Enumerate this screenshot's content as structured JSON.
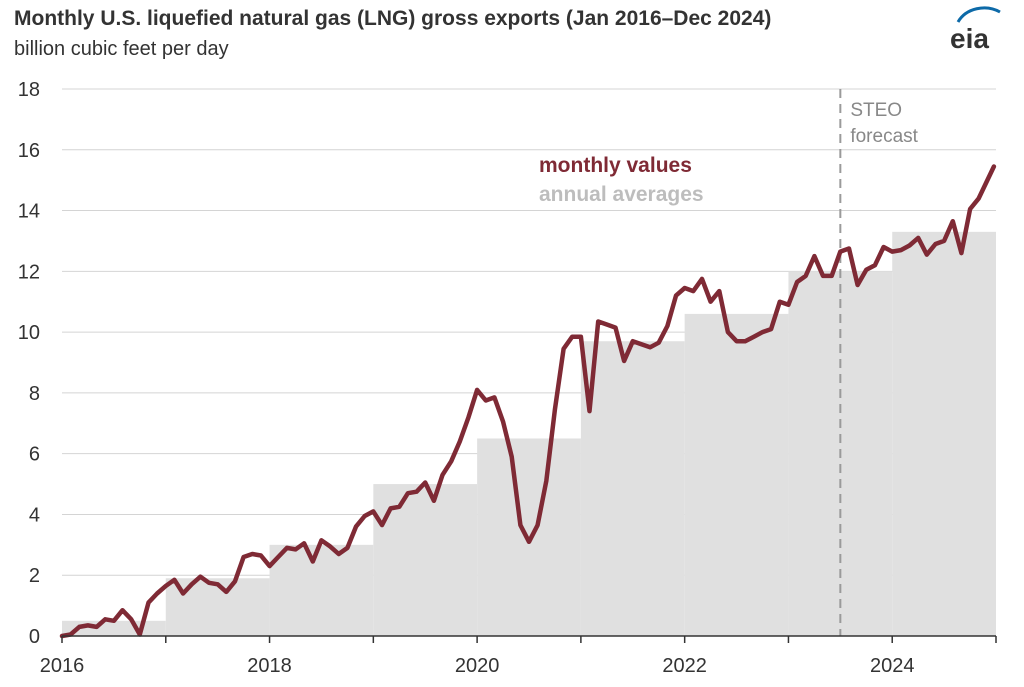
{
  "chart_data": {
    "type": "line",
    "title": "Monthly U.S. liquefied natural gas (LNG) gross exports (Jan 2016–Dec 2024)",
    "subtitle": "billion cubic feet per day",
    "ylim": [
      0,
      18
    ],
    "y_ticks": [
      0,
      2,
      4,
      6,
      8,
      10,
      12,
      14,
      16,
      18
    ],
    "x_ticks": [
      2016,
      2018,
      2020,
      2022,
      2024
    ],
    "xlim": [
      2016,
      2025
    ],
    "grid": true,
    "legend": [
      "monthly values",
      "annual averages"
    ],
    "colors": {
      "monthly": "#7f2a35",
      "annual": "#e0e0e0",
      "axis": "#333333",
      "grid": "#d4d4d4",
      "forecast_line": "#9a9a9a",
      "forecast_text": "#888888",
      "annual_text": "#bdbdbd"
    },
    "forecast_label": [
      "STEO",
      "forecast"
    ],
    "forecast_start": 2023.5,
    "series": [
      {
        "name": "annual averages",
        "type": "step",
        "x": [
          2016,
          2017,
          2018,
          2019,
          2020,
          2021,
          2022,
          2023,
          2024
        ],
        "values": [
          0.5,
          1.9,
          3.0,
          5.0,
          6.5,
          9.7,
          10.6,
          12.0,
          13.3
        ]
      },
      {
        "name": "monthly values",
        "type": "line",
        "start": "2016-01",
        "values": [
          0.0,
          0.05,
          0.3,
          0.35,
          0.3,
          0.55,
          0.5,
          0.85,
          0.55,
          0.05,
          1.1,
          1.4,
          1.65,
          1.85,
          1.4,
          1.7,
          1.95,
          1.75,
          1.7,
          1.45,
          1.8,
          2.6,
          2.7,
          2.65,
          2.3,
          2.6,
          2.9,
          2.85,
          3.05,
          2.45,
          3.15,
          2.95,
          2.7,
          2.9,
          3.6,
          3.95,
          4.1,
          3.65,
          4.2,
          4.25,
          4.7,
          4.75,
          5.05,
          4.45,
          5.3,
          5.75,
          6.4,
          7.2,
          8.1,
          7.75,
          7.85,
          7.05,
          5.9,
          3.65,
          3.1,
          3.65,
          5.1,
          7.45,
          9.45,
          9.85,
          9.85,
          7.4,
          10.35,
          10.25,
          10.15,
          9.05,
          9.7,
          9.6,
          9.5,
          9.65,
          10.2,
          11.2,
          11.45,
          11.35,
          11.75,
          11.0,
          11.35,
          10.0,
          9.7,
          9.7,
          9.85,
          10.0,
          10.1,
          11.0,
          10.9,
          11.65,
          11.85,
          12.5,
          11.85,
          11.85,
          12.65,
          12.75,
          11.55,
          12.05,
          12.2,
          12.8,
          12.65,
          12.7,
          12.85,
          13.1,
          12.55,
          12.9,
          13.0,
          13.65,
          12.6,
          14.05,
          14.4,
          15.45
        ]
      }
    ]
  }
}
